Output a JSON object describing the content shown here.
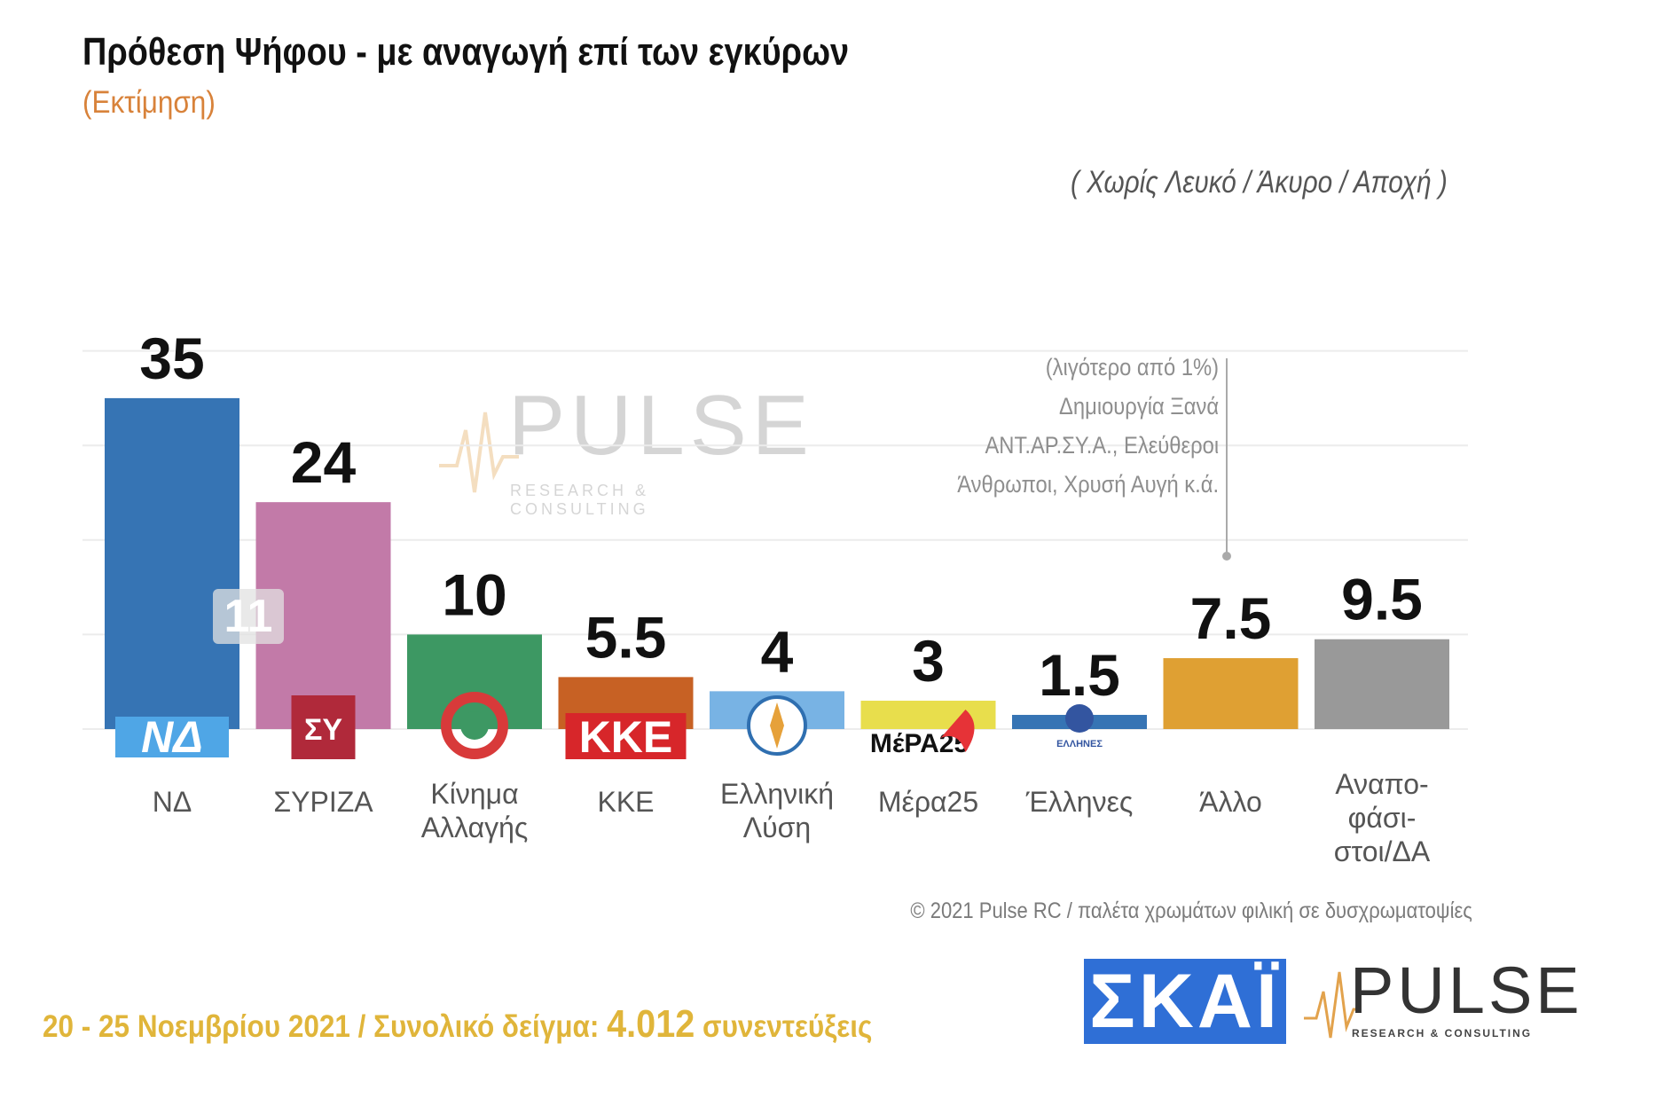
{
  "title": "Πρόθεση Ψήφου - με αναγωγή επί των εγκύρων",
  "subtitle": "(Εκτίμηση)",
  "note": "( Χωρίς Λευκό / Άκυρο / Αποχή )",
  "annotation_lines": [
    "(λιγότερο από 1%)",
    "Δημιουργία Ξανά",
    "ΑΝΤ.ΑΡ.ΣΥ.Α., Ελεύθεροι",
    "Άνθρωποι, Χρυσή Αυγή    κ.ά."
  ],
  "credit": "© 2021 Pulse RC   /   παλέτα χρωμάτων φιλική σε δυσχρωματοψίες",
  "footer": {
    "dates": "20 - 25  Νοεμβρίου 2021  /  Συνολικό δείγμα:",
    "sample": "4.012",
    "interviews": "συνεντεύξεις"
  },
  "overlay_badge": "11",
  "logos": {
    "skai": "ΣΚΑΪ",
    "pulse_word": "PULSE",
    "pulse_sub": "RESEARCH & CONSULTING",
    "nd": "ΝΔ",
    "syriza": "ΣΥ",
    "kke": "ΚΚΕ",
    "mera25": "ΜέΡΑ25",
    "ellines": "ΕΛΛΗΝΕΣ"
  },
  "chart_data": {
    "type": "bar",
    "categories": [
      "ΝΔ",
      "ΣΥΡΙΖΑ",
      "Κίνημα Αλλαγής",
      "ΚΚΕ",
      "Ελληνική Λύση",
      "Μέρα25",
      "Έλληνες",
      "Άλλο",
      "Αναποφάσιστοι/ΔΑ"
    ],
    "category_lines": [
      [
        "ΝΔ"
      ],
      [
        "ΣΥΡΙΖΑ"
      ],
      [
        "Κίνημα",
        "Αλλαγής"
      ],
      [
        "ΚΚΕ"
      ],
      [
        "Ελληνική",
        "Λύση"
      ],
      [
        "Μέρα25"
      ],
      [
        "Έλληνες"
      ],
      [
        "Άλλο"
      ],
      [
        "Αναπο-",
        "φάσι-",
        "στοι/ΔΑ"
      ]
    ],
    "values": [
      35,
      24,
      10,
      5.5,
      4,
      3,
      1.5,
      7.5,
      9.5
    ],
    "value_labels": [
      "35",
      "24",
      "10",
      "5.5",
      "4",
      "3",
      "1.5",
      "7.5",
      "9.5"
    ],
    "colors": [
      "#3674b4",
      "#c27aa8",
      "#3d9863",
      "#c76124",
      "#78b3e4",
      "#e8de4c",
      "#3674b4",
      "#dfa033",
      "#999999"
    ],
    "ylim": [
      0,
      40
    ],
    "grid": true,
    "legend": "none"
  }
}
